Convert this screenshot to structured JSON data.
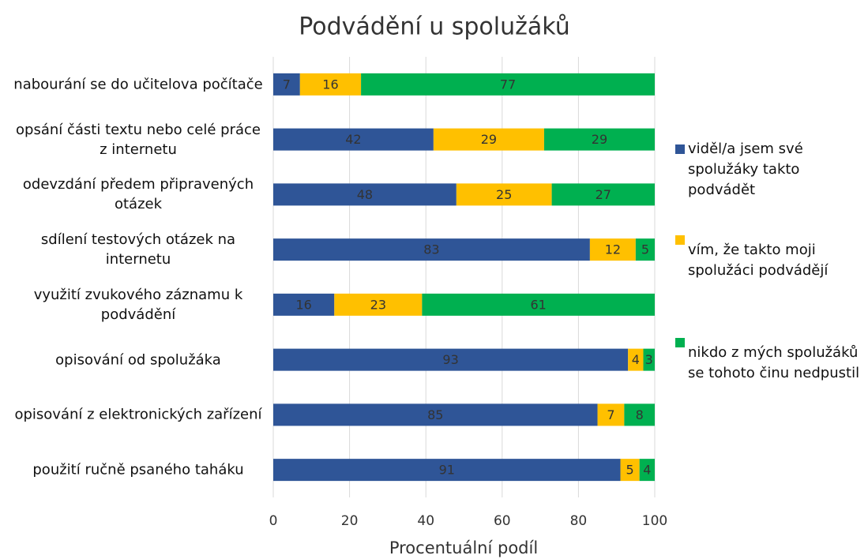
{
  "chart_data": {
    "type": "stacked-bar-horizontal",
    "title": "Podvádění u spolužáků",
    "x_label": "Procentuální podíl",
    "categories": [
      "nabourání se do učitelova počítače",
      "opsání části textu nebo celé práce z internetu",
      "odevzdání předem připravených otázek",
      "sdílení testových otázek na internetu",
      "využití zvukového záznamu k podvádění",
      "opisování od spolužáka",
      "opisování z elektronických zařízení",
      "použití ručně psaného taháku"
    ],
    "series": [
      {
        "name": "viděl/a jsem své spolužáky takto podvádět",
        "color": "#2f5597",
        "values": [
          7,
          42,
          48,
          83,
          16,
          93,
          85,
          91
        ]
      },
      {
        "name": "vím, že takto moji spolužáci podvádějí",
        "color": "#ffc000",
        "values": [
          16,
          29,
          25,
          12,
          23,
          4,
          7,
          5
        ]
      },
      {
        "name": "nikdo z mých spolužáků se tohoto činu nedpustil",
        "color": "#00b050",
        "values": [
          77,
          29,
          27,
          5,
          61,
          3,
          8,
          4
        ]
      }
    ],
    "xlim": [
      0,
      100
    ],
    "xticks": [
      0,
      20,
      40,
      60,
      80,
      100
    ],
    "grid": true,
    "legend": "right"
  }
}
